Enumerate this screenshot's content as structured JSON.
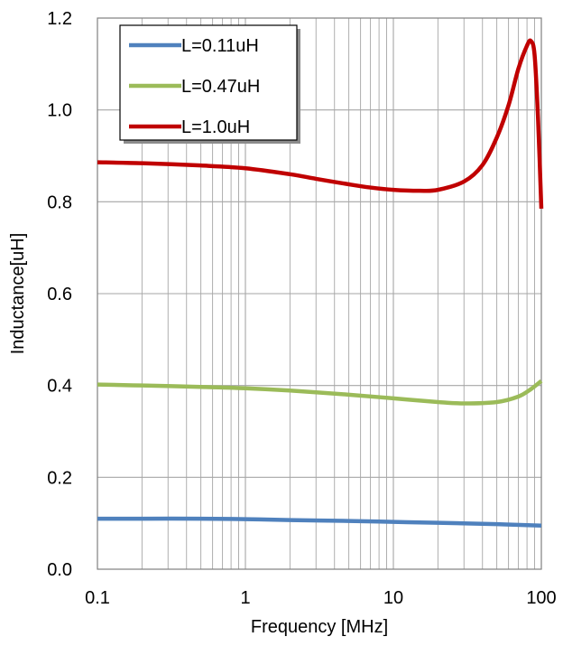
{
  "chart_data": {
    "type": "line",
    "title": "",
    "xlabel": "Frequency [MHz]",
    "ylabel": "Inductance[uH]",
    "xscale": "log",
    "xlim": [
      0.1,
      100
    ],
    "ylim": [
      0,
      1.2
    ],
    "x_ticks": [
      "0.1",
      "1",
      "10",
      "100"
    ],
    "y_ticks": [
      "0.0",
      "0.2",
      "0.4",
      "0.6",
      "0.8",
      "1.0",
      "1.2"
    ],
    "grid": true,
    "legend_position": "top-left",
    "series": [
      {
        "name": "L=0.11uH",
        "color": "#4f81bd",
        "x": [
          0.1,
          0.2,
          0.5,
          1,
          2,
          5,
          10,
          20,
          50,
          100
        ],
        "y": [
          0.11,
          0.11,
          0.11,
          0.109,
          0.107,
          0.105,
          0.103,
          0.101,
          0.098,
          0.095
        ]
      },
      {
        "name": "L=0.47uH",
        "color": "#9bbb59",
        "x": [
          0.1,
          0.2,
          0.5,
          1,
          2,
          5,
          10,
          20,
          30,
          50,
          70,
          85,
          100
        ],
        "y": [
          0.402,
          0.4,
          0.397,
          0.394,
          0.389,
          0.38,
          0.372,
          0.364,
          0.361,
          0.364,
          0.376,
          0.392,
          0.41
        ]
      },
      {
        "name": "L=1.0uH",
        "color": "#c00000",
        "x": [
          0.1,
          0.2,
          0.5,
          1,
          2,
          3,
          5,
          7,
          10,
          15,
          20,
          30,
          40,
          50,
          60,
          70,
          80,
          85,
          90,
          95,
          100
        ],
        "y": [
          0.886,
          0.884,
          0.879,
          0.873,
          0.86,
          0.85,
          0.838,
          0.831,
          0.826,
          0.824,
          0.826,
          0.844,
          0.88,
          0.94,
          1.01,
          1.09,
          1.14,
          1.15,
          1.12,
          0.98,
          0.785
        ]
      }
    ]
  }
}
